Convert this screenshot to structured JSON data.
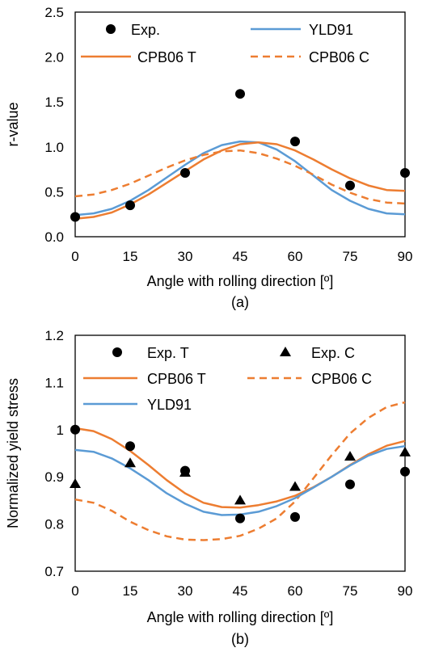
{
  "chart_data": [
    {
      "type": "line",
      "caption": "(a)",
      "xlabel": "Angle with rolling direction [º]",
      "ylabel": "r-value",
      "xlim": [
        0,
        90
      ],
      "ylim": [
        0,
        2.5
      ],
      "xticks": [
        0,
        15,
        30,
        45,
        60,
        75,
        90
      ],
      "yticks": [
        0.0,
        0.5,
        1.0,
        1.5,
        2.0,
        2.5
      ],
      "ytick_labels": [
        "0.0",
        "0.5",
        "1.0",
        "1.5",
        "2.0",
        "2.5"
      ],
      "xtick_labels": [
        "0",
        "15",
        "30",
        "45",
        "60",
        "75",
        "90"
      ],
      "legend_position": "top",
      "series": [
        {
          "name": "Exp.",
          "style": "scatter",
          "marker": "circle",
          "color": "#000000",
          "x": [
            0,
            15,
            30,
            45,
            60,
            75,
            90
          ],
          "y": [
            0.22,
            0.35,
            0.71,
            1.59,
            1.06,
            0.57,
            0.71
          ]
        },
        {
          "name": "YLD91",
          "style": "line",
          "dash": false,
          "color": "#5B9BD5",
          "x": [
            0,
            5,
            10,
            15,
            20,
            25,
            30,
            35,
            40,
            45,
            50,
            55,
            60,
            65,
            70,
            75,
            80,
            85,
            90
          ],
          "y": [
            0.24,
            0.26,
            0.31,
            0.4,
            0.52,
            0.66,
            0.8,
            0.93,
            1.02,
            1.06,
            1.05,
            0.97,
            0.84,
            0.68,
            0.52,
            0.4,
            0.31,
            0.26,
            0.25
          ]
        },
        {
          "name": "CPB06 T",
          "style": "line",
          "dash": false,
          "color": "#ED7D31",
          "x": [
            0,
            5,
            10,
            15,
            20,
            25,
            30,
            35,
            40,
            45,
            50,
            55,
            60,
            65,
            70,
            75,
            80,
            85,
            90
          ],
          "y": [
            0.2,
            0.22,
            0.27,
            0.36,
            0.47,
            0.6,
            0.73,
            0.86,
            0.96,
            1.03,
            1.05,
            1.03,
            0.96,
            0.86,
            0.75,
            0.65,
            0.57,
            0.52,
            0.51
          ]
        },
        {
          "name": "CPB06 C",
          "style": "line",
          "dash": true,
          "color": "#ED7D31",
          "x": [
            0,
            5,
            10,
            15,
            20,
            25,
            30,
            35,
            40,
            45,
            50,
            55,
            60,
            65,
            70,
            75,
            80,
            85,
            90
          ],
          "y": [
            0.45,
            0.47,
            0.52,
            0.59,
            0.68,
            0.77,
            0.85,
            0.91,
            0.95,
            0.96,
            0.93,
            0.87,
            0.79,
            0.69,
            0.58,
            0.49,
            0.42,
            0.38,
            0.37
          ]
        }
      ]
    },
    {
      "type": "line",
      "caption": "(b)",
      "xlabel": "Angle with rolling direction [º]",
      "ylabel": "Normalized yield stress",
      "xlim": [
        0,
        90
      ],
      "ylim": [
        0.7,
        1.2
      ],
      "xticks": [
        0,
        15,
        30,
        45,
        60,
        75,
        90
      ],
      "yticks": [
        0.7,
        0.8,
        0.9,
        1.0,
        1.1,
        1.2
      ],
      "ytick_labels": [
        "0.7",
        "0.8",
        "0.9",
        "1",
        "1.1",
        "1.2"
      ],
      "xtick_labels": [
        "0",
        "15",
        "30",
        "45",
        "60",
        "75",
        "90"
      ],
      "legend_position": "top",
      "series": [
        {
          "name": "Exp. T",
          "style": "scatter",
          "marker": "circle",
          "color": "#000000",
          "x": [
            0,
            15,
            30,
            45,
            60,
            75,
            90
          ],
          "y": [
            1.0,
            0.965,
            0.913,
            0.812,
            0.815,
            0.884,
            0.911
          ]
        },
        {
          "name": "Exp. C",
          "style": "scatter",
          "marker": "triangle",
          "color": "#000000",
          "x": [
            0,
            15,
            30,
            45,
            60,
            75,
            90
          ],
          "y": [
            0.885,
            0.929,
            0.909,
            0.85,
            0.879,
            0.943,
            0.952
          ]
        },
        {
          "name": "CPB06 T",
          "style": "line",
          "dash": false,
          "color": "#ED7D31",
          "x": [
            0,
            5,
            10,
            15,
            20,
            25,
            30,
            35,
            40,
            45,
            50,
            55,
            60,
            65,
            70,
            75,
            80,
            85,
            90
          ],
          "y": [
            1.003,
            0.997,
            0.98,
            0.955,
            0.925,
            0.893,
            0.865,
            0.845,
            0.836,
            0.835,
            0.84,
            0.848,
            0.86,
            0.878,
            0.9,
            0.925,
            0.948,
            0.966,
            0.976
          ]
        },
        {
          "name": "CPB06 C",
          "style": "line",
          "dash": true,
          "color": "#ED7D31",
          "x": [
            0,
            5,
            10,
            15,
            20,
            25,
            30,
            35,
            40,
            45,
            50,
            55,
            60,
            65,
            70,
            75,
            80,
            85,
            90
          ],
          "y": [
            0.852,
            0.845,
            0.828,
            0.805,
            0.787,
            0.774,
            0.767,
            0.766,
            0.768,
            0.775,
            0.79,
            0.812,
            0.848,
            0.897,
            0.946,
            0.992,
            1.025,
            1.048,
            1.058
          ]
        },
        {
          "name": "YLD91",
          "style": "line",
          "dash": false,
          "color": "#5B9BD5",
          "x": [
            0,
            5,
            10,
            15,
            20,
            25,
            30,
            35,
            40,
            45,
            50,
            55,
            60,
            65,
            70,
            75,
            80,
            85,
            90
          ],
          "y": [
            0.957,
            0.953,
            0.939,
            0.918,
            0.893,
            0.865,
            0.843,
            0.826,
            0.819,
            0.82,
            0.826,
            0.838,
            0.855,
            0.877,
            0.9,
            0.924,
            0.945,
            0.959,
            0.965
          ]
        }
      ]
    }
  ]
}
